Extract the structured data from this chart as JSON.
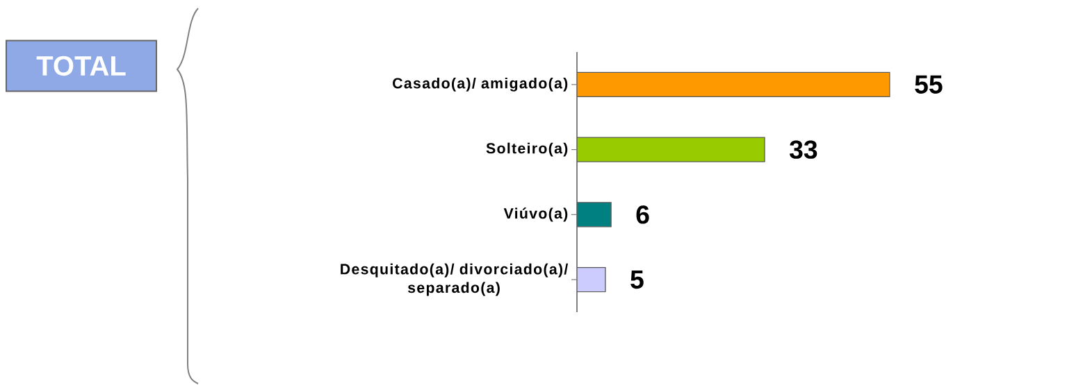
{
  "chart_data": {
    "type": "bar",
    "orientation": "horizontal",
    "title": "TOTAL",
    "categories": [
      "Casado(a)/ amigado(a)",
      "Solteiro(a)",
      "Viúvo(a)",
      "Desquitado(a)/ divorciado(a)/ separado(a)"
    ],
    "values": [
      55,
      33,
      6,
      5
    ],
    "colors": [
      "#ff9900",
      "#99cc00",
      "#008080",
      "#ccccff"
    ],
    "data_labels": true,
    "tick_labels": "y"
  }
}
